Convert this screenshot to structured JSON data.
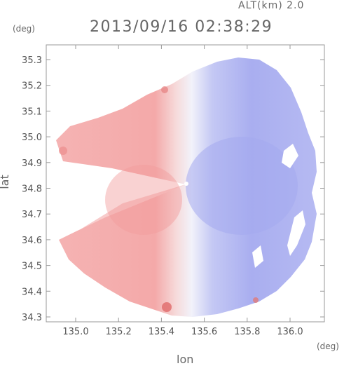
{
  "header": {
    "altitude_label": "ALT(km) 2.0",
    "timestamp": "2013/09/16 02:38:29"
  },
  "axes": {
    "y_unit": "(deg)",
    "x_unit": "(deg)",
    "y_label": "lat",
    "x_label": "lon",
    "y_ticks": [
      "35.3",
      "35.2",
      "35.1",
      "35.0",
      "34.9",
      "34.8",
      "34.7",
      "34.6",
      "34.5",
      "34.4",
      "34.3"
    ],
    "x_ticks": [
      "135.0",
      "135.2",
      "135.4",
      "135.6",
      "135.8",
      "136.0"
    ]
  },
  "map": {
    "radar_center": {
      "lon": 135.52,
      "lat": 34.82
    },
    "colors": {
      "approaching": "#f2a6a6",
      "receding": "#a9aef0",
      "near_zero": "#f4f4fb",
      "frame": "#9a9a9a",
      "grid": "#d8d8d8"
    }
  }
}
